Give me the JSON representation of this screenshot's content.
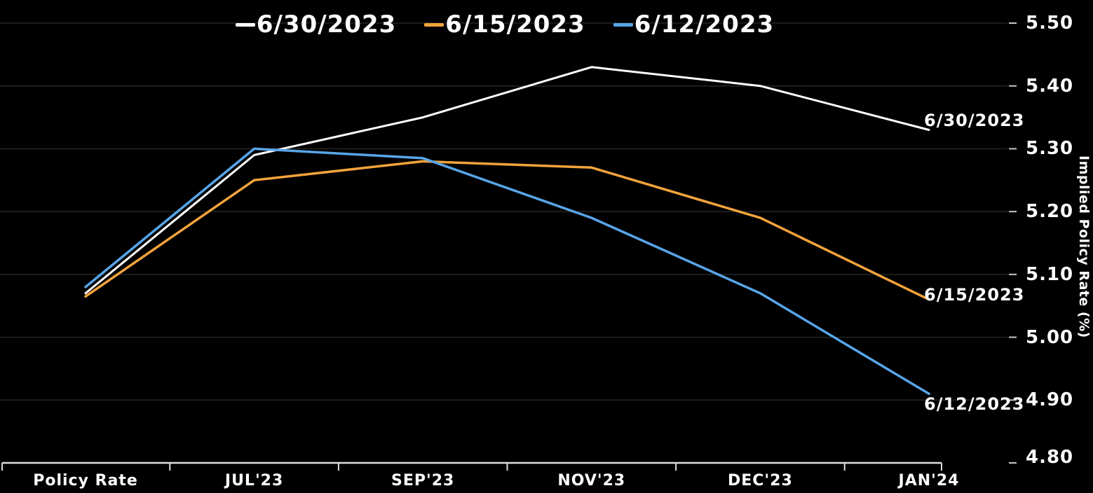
{
  "chart_data": {
    "type": "line",
    "title": "",
    "categories": [
      "Policy Rate",
      "JUL'23",
      "SEP'23",
      "NOV'23",
      "DEC'23",
      "JAN'24"
    ],
    "series": [
      {
        "name": "6/30/2023",
        "color": "#ffffff",
        "values": [
          5.07,
          5.29,
          5.35,
          5.43,
          5.4,
          5.33
        ]
      },
      {
        "name": "6/15/2023",
        "color": "#f2a33c",
        "values": [
          5.065,
          5.25,
          5.28,
          5.27,
          5.19,
          5.06
        ]
      },
      {
        "name": "6/12/2023",
        "color": "#58a5e8",
        "values": [
          5.08,
          5.3,
          5.285,
          5.19,
          5.07,
          4.91
        ]
      }
    ],
    "xlabel": "",
    "ylabel": "Implied Policy Rate (%)",
    "ylim": [
      4.8,
      5.5
    ],
    "ytick_step": 0.1,
    "yticks": [
      "5.50",
      "5.40",
      "5.30",
      "5.20",
      "5.10",
      "5.00",
      "4.90",
      "4.80"
    ],
    "legend_position": "top-center",
    "grid": true,
    "series_end_labels": [
      "6/30/2023",
      "6/15/2023",
      "6/12/2023"
    ],
    "colors": {
      "background": "#000000",
      "grid": "#262626",
      "axis": "#dedede",
      "right_tick": "#c8c8c8",
      "text": "#ffffff"
    }
  }
}
